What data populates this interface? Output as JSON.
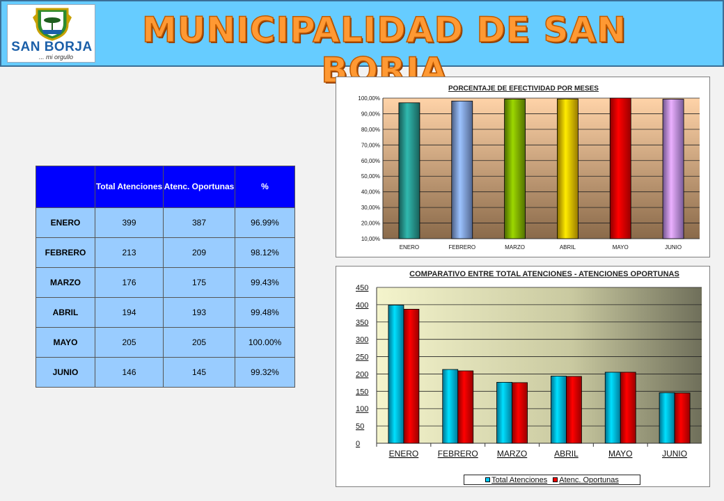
{
  "header": {
    "title": "MUNICIPALIDAD DE SAN BORJA",
    "logo_text": "SAN BORJA",
    "logo_tagline": "... mi orgullo"
  },
  "table": {
    "headers": [
      "",
      "Total Atenciones",
      "Atenc. Oportunas",
      "%"
    ],
    "rows": [
      {
        "month": "ENERO",
        "total": "399",
        "oportunas": "387",
        "pct": "96.99%"
      },
      {
        "month": "FEBRERO",
        "total": "213",
        "oportunas": "209",
        "pct": "98.12%"
      },
      {
        "month": "MARZO",
        "total": "176",
        "oportunas": "175",
        "pct": "99.43%"
      },
      {
        "month": "ABRIL",
        "total": "194",
        "oportunas": "193",
        "pct": "99.48%"
      },
      {
        "month": "MAYO",
        "total": "205",
        "oportunas": "205",
        "pct": "100.00%"
      },
      {
        "month": "JUNIO",
        "total": "146",
        "oportunas": "145",
        "pct": "99.32%"
      }
    ]
  },
  "chart_data": [
    {
      "type": "bar",
      "title": "PORCENTAJE DE EFECTIVIDAD POR MESES",
      "categories": [
        "ENERO",
        "FEBRERO",
        "MARZO",
        "ABRIL",
        "MAYO",
        "JUNIO"
      ],
      "values": [
        96.99,
        98.12,
        99.43,
        99.48,
        100.0,
        99.32
      ],
      "ylim": [
        10,
        100
      ],
      "yticks": [
        10,
        20,
        30,
        40,
        50,
        60,
        70,
        80,
        90,
        100
      ],
      "ytick_labels": [
        "10,00%",
        "20,00%",
        "30,00%",
        "40,00%",
        "50,00%",
        "60,00%",
        "70,00%",
        "80,00%",
        "90,00%",
        "100,00%"
      ],
      "bar_colors": [
        "#2aa198",
        "#88aaee",
        "#88bb00",
        "#ffcc00",
        "#ff0000",
        "#cc99ff"
      ],
      "background": "#e3a97a",
      "grid": true,
      "legend": "none"
    },
    {
      "type": "bar",
      "title": "COMPARATIVO ENTRE TOTAL ATENCIONES - ATENCIONES OPORTUNAS",
      "categories": [
        "ENERO",
        "FEBRERO",
        "MARZO",
        "ABRIL",
        "MAYO",
        "JUNIO"
      ],
      "series": [
        {
          "name": "Total Atenciones",
          "values": [
            399,
            213,
            176,
            194,
            205,
            146
          ],
          "color": "#00ccff"
        },
        {
          "name": "Atenc. Oportunas",
          "values": [
            387,
            209,
            175,
            193,
            205,
            145
          ],
          "color": "#ff0000"
        }
      ],
      "ylim": [
        0,
        450
      ],
      "yticks": [
        0,
        50,
        100,
        150,
        200,
        250,
        300,
        350,
        400,
        450
      ],
      "ytick_labels": [
        "0",
        "50",
        "100",
        "150",
        "200",
        "250",
        "300",
        "350",
        "400",
        "450"
      ],
      "background": "#e8e8b0",
      "grid": true,
      "legend": "bottom"
    }
  ]
}
